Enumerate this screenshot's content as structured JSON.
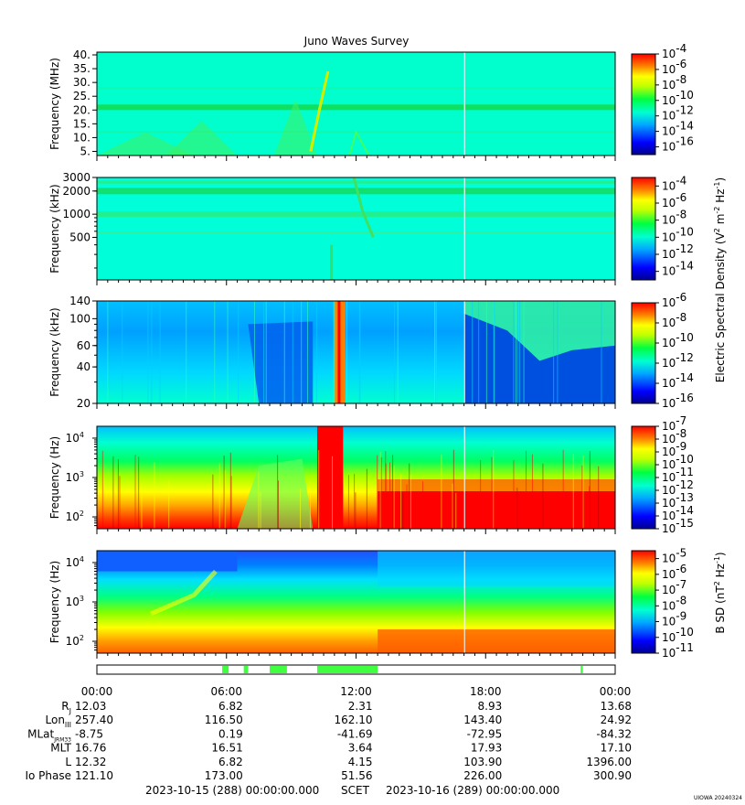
{
  "chart_data": {
    "type": "heatmap",
    "title": "Juno Waves Survey",
    "panels": [
      {
        "ylabel": "Frequency (MHz)",
        "yscale": "linear",
        "ylim": [
          3.5,
          41
        ],
        "ytick_values": [
          5,
          10,
          15,
          20,
          25,
          30,
          35,
          40
        ],
        "ytick_labels": [
          "5.",
          "10.",
          "15.",
          "20.",
          "25.",
          "30.",
          "35.",
          "40."
        ],
        "colorbar_exponents": [
          "-4",
          "-6",
          "-8",
          "-10",
          "-12",
          "-14",
          "-16"
        ],
        "colorbar_range_log": [
          -17,
          -4
        ]
      },
      {
        "ylabel": "Frequency (kHz)",
        "yscale": "log",
        "ylim": [
          140,
          3000
        ],
        "ytick_values": [
          500,
          1000,
          2000,
          3000
        ],
        "ytick_labels": [
          "500",
          "1000",
          "2000",
          "3000"
        ],
        "colorbar_exponents": [
          "-4",
          "-6",
          "-8",
          "-10",
          "-12",
          "-14"
        ],
        "colorbar_range_log": [
          -15,
          -3
        ]
      },
      {
        "ylabel": "Frequency (kHz)",
        "yscale": "log",
        "ylim": [
          20,
          140
        ],
        "ytick_values": [
          20,
          40,
          60,
          100,
          140
        ],
        "ytick_labels": [
          "20",
          "40",
          "60",
          "100",
          "140"
        ],
        "colorbar_exponents": [
          "-6",
          "-8",
          "-10",
          "-12",
          "-14",
          "-16"
        ],
        "colorbar_range_log": [
          -16,
          -6
        ]
      },
      {
        "ylabel": "Frequency (Hz)",
        "yscale": "log",
        "ylim": [
          50,
          20000
        ],
        "ytick_values": [
          100,
          1000,
          10000
        ],
        "ytick_labels": [
          "10",
          "10",
          "10"
        ],
        "ytick_exponents": [
          "2",
          "3",
          "4"
        ],
        "colorbar_exponents": [
          "-7",
          "-8",
          "-9",
          "-10",
          "-11",
          "-12",
          "-13",
          "-14",
          "-15"
        ],
        "colorbar_range_log": [
          -15,
          -7
        ]
      },
      {
        "ylabel": "Frequency (Hz)",
        "yscale": "log",
        "ylim": [
          50,
          20000
        ],
        "ytick_values": [
          100,
          1000,
          10000
        ],
        "ytick_labels": [
          "10",
          "10",
          "10"
        ],
        "ytick_exponents": [
          "2",
          "3",
          "4"
        ],
        "colorbar_exponents": [
          "-5",
          "-6",
          "-7",
          "-8",
          "-9",
          "-10",
          "-11"
        ],
        "colorbar_range_log": [
          -11,
          -4.5
        ]
      }
    ],
    "colorbar_labels": {
      "electric_prefix": "Electric Spectral Density (V",
      "electric_exp1": "2",
      "electric_mid": " m",
      "electric_exp2": "-2",
      "electric_mid2": " Hz",
      "electric_exp3": "-1",
      "electric_suffix": ")",
      "magnetic_prefix": "B SD (nT",
      "magnetic_exp1": "2",
      "magnetic_mid": " Hz",
      "magnetic_exp2": "-1",
      "magnetic_suffix": ")",
      "base": "10"
    },
    "x_axis": {
      "tick_hours": [
        0,
        6,
        12,
        18,
        24
      ],
      "tick_labels": [
        "00:00",
        "06:00",
        "12:00",
        "18:00",
        "00:00"
      ],
      "rows": [
        {
          "label": "R",
          "sub": "J",
          "values": [
            "12.03",
            "6.82",
            "2.31",
            "8.93",
            "13.68"
          ]
        },
        {
          "label": "Lon",
          "sub": "III",
          "values": [
            "257.40",
            "116.50",
            "162.10",
            "143.40",
            "24.92"
          ]
        },
        {
          "label": "MLat",
          "sub": "JRM33",
          "values": [
            "-8.75",
            "0.19",
            "-41.69",
            "-72.95",
            "-84.32"
          ]
        },
        {
          "label": "MLT",
          "sub": "",
          "values": [
            "16.76",
            "16.51",
            "3.64",
            "17.93",
            "17.10"
          ]
        },
        {
          "label": "L",
          "sub": "",
          "values": [
            "12.32",
            "6.82",
            "4.15",
            "103.90",
            "1396.00"
          ]
        },
        {
          "label": "Io Phase",
          "sub": "",
          "values": [
            "121.10",
            "173.00",
            "51.56",
            "226.00",
            "300.90"
          ]
        }
      ],
      "start_label": "2023-10-15 (288) 00:00:00.000",
      "scet_label": "SCET",
      "end_label": "2023-10-16 (289) 00:00:00.000"
    },
    "mode_bar_segments_hours": [
      [
        5.8,
        6.1
      ],
      [
        6.8,
        7.0
      ],
      [
        8.0,
        8.8
      ],
      [
        10.2,
        13.0
      ],
      [
        22.4,
        22.5
      ]
    ],
    "data_gap_hour": 17.0,
    "colors": {
      "panel1_bg": "#00ffcc",
      "panel2_bg": "#00ffd8",
      "panel3_bg": "#00aaff",
      "mode_bar": "#40ff40"
    }
  },
  "footer": {
    "credit": "UIOWA 20240324"
  }
}
